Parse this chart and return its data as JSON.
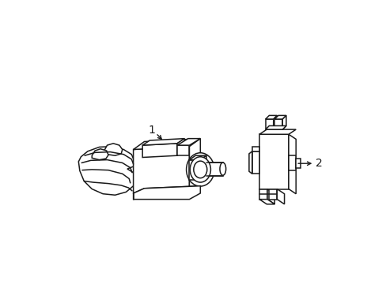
{
  "bg_color": "#ffffff",
  "line_color": "#1a1a1a",
  "line_width": 1.1,
  "label1": "1",
  "label2": "2",
  "figsize": [
    4.89,
    3.6
  ],
  "dpi": 100
}
